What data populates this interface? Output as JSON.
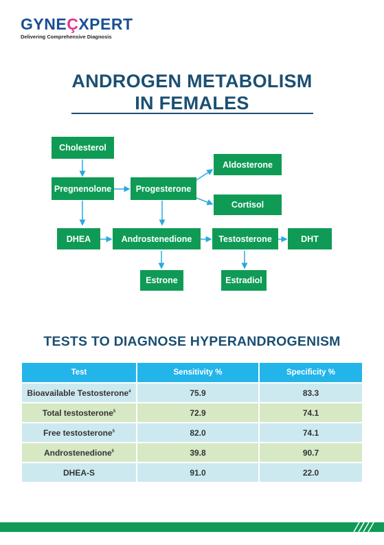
{
  "logo": {
    "brand_prefix": "GYNE",
    "brand_accent": "Ç",
    "brand_suffix": "XPERT",
    "tagline": "Delivering Comprehensive Diagnosis"
  },
  "title": {
    "line1": "ANDROGEN METABOLISM",
    "line2": "IN FEMALES"
  },
  "diagram": {
    "cholesterol": "Cholesterol",
    "pregnenolone": "Pregnenolone",
    "progesterone": "Progesterone",
    "aldosterone": "Aldosterone",
    "cortisol": "Cortisol",
    "dhea": "DHEA",
    "androstenedione": "Androstenedione",
    "testosterone": "Testosterone",
    "dht": "DHT",
    "estrone": "Estrone",
    "estradiol": "Estradiol"
  },
  "tests": {
    "heading": "TESTS TO DIAGNOSE HYPERANDROGENISM",
    "columns": [
      "Test",
      "Sensitivity %",
      "Specificity %"
    ],
    "rows": [
      {
        "test": "Bioavailable Testosterone",
        "ref": "4",
        "sensitivity": "75.9",
        "specificity": "83.3"
      },
      {
        "test": "Total testosterone",
        "ref": "5",
        "sensitivity": "72.9",
        "specificity": "74.1"
      },
      {
        "test": "Free testosterone",
        "ref": "5",
        "sensitivity": "82.0",
        "specificity": "74.1"
      },
      {
        "test": "Androstenedione",
        "ref": "5",
        "sensitivity": "39.8",
        "specificity": "90.7"
      },
      {
        "test": "DHEA-S",
        "ref": "",
        "sensitivity": "91.0",
        "specificity": "22.0"
      }
    ]
  },
  "colors": {
    "green": "#0f9b55",
    "navy": "#1b4f72",
    "table_header": "#23b4ea",
    "row_blue": "#cde9f0",
    "row_green": "#d6e8c4"
  }
}
